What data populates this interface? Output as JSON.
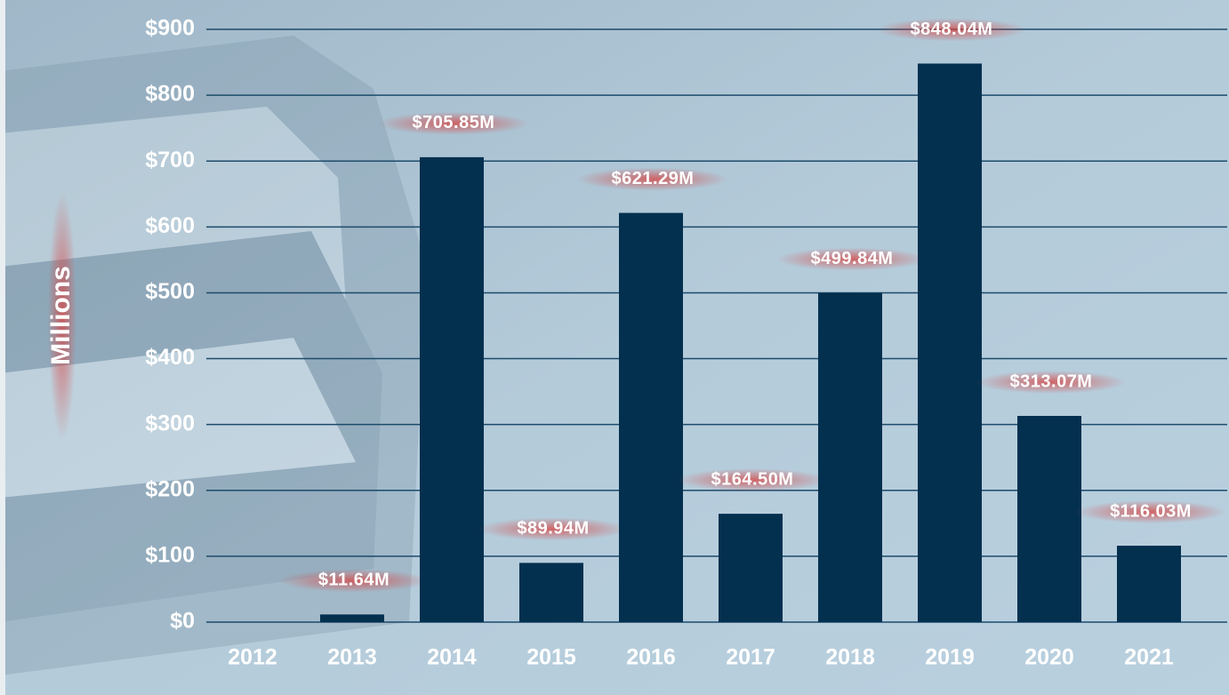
{
  "chart_data": {
    "type": "bar",
    "y_axis_label": "Millions",
    "categories": [
      "2012",
      "2013",
      "2014",
      "2015",
      "2016",
      "2017",
      "2018",
      "2019",
      "2020",
      "2021"
    ],
    "values": [
      null,
      11.64,
      705.85,
      89.94,
      621.29,
      164.5,
      499.84,
      848.04,
      313.07,
      116.03
    ],
    "value_labels": [
      null,
      "$11.64M",
      "$705.85M",
      "$89.94M",
      "$621.29M",
      "$164.50M",
      "$499.84M",
      "$848.04M",
      "$313.07M",
      "$116.03M"
    ],
    "color": "#04304f",
    "ylim": [
      0,
      900
    ],
    "yticks": [
      {
        "value": 0,
        "label": "$0"
      },
      {
        "value": 100,
        "label": "$100"
      },
      {
        "value": 200,
        "label": "$200"
      },
      {
        "value": 300,
        "label": "$300"
      },
      {
        "value": 400,
        "label": "$400"
      },
      {
        "value": 500,
        "label": "$500"
      },
      {
        "value": 600,
        "label": "$600"
      },
      {
        "value": 700,
        "label": "$700"
      },
      {
        "value": 800,
        "label": "$800"
      },
      {
        "value": 900,
        "label": "$900"
      }
    ],
    "grid": true
  }
}
